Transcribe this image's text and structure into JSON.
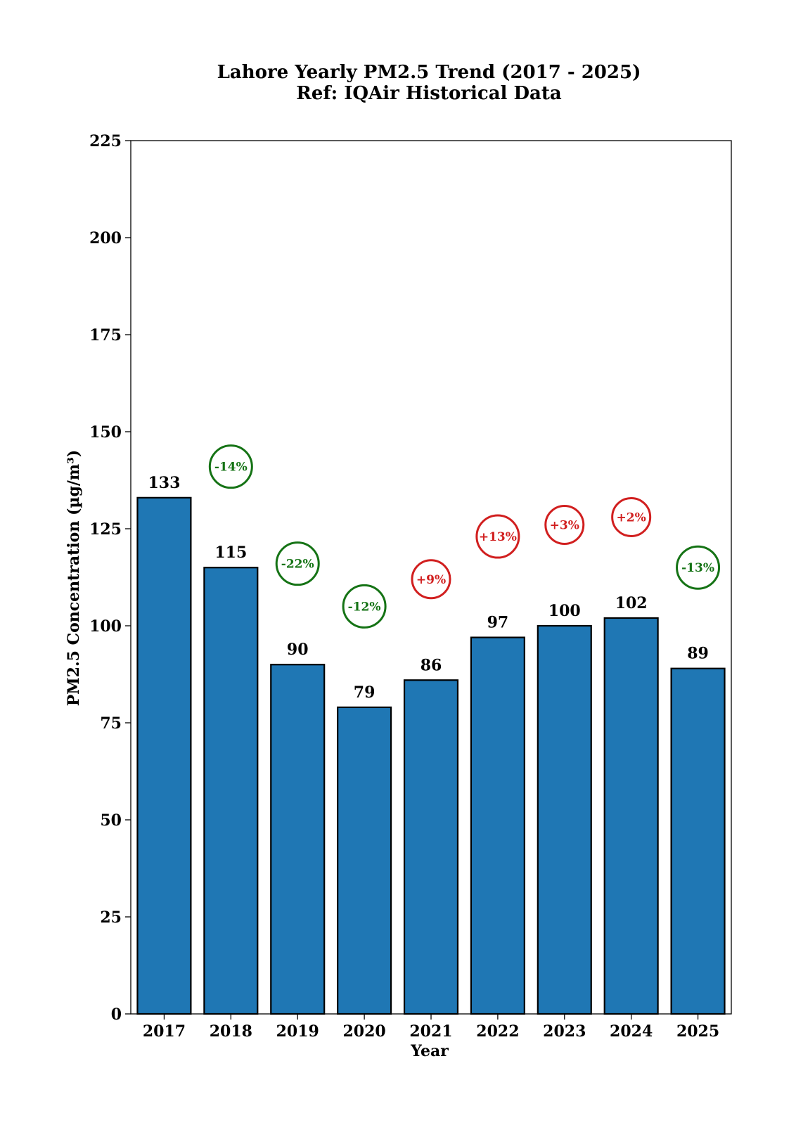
{
  "chart_data": {
    "type": "bar",
    "title": "Lahore Yearly PM2.5 Trend (2017 - 2025)",
    "subtitle": "Ref: IQAir Historical Data",
    "xlabel": "Year",
    "ylabel": "PM2.5 Concentration (µg/m³)",
    "categories": [
      "2017",
      "2018",
      "2019",
      "2020",
      "2021",
      "2022",
      "2023",
      "2024",
      "2025"
    ],
    "values": [
      133,
      115,
      90,
      79,
      86,
      97,
      100,
      102,
      89
    ],
    "ylim": [
      0,
      225
    ],
    "yticks": [
      0,
      25,
      50,
      75,
      100,
      125,
      150,
      175,
      200,
      225
    ],
    "grid": false,
    "bar_color": "#1f77b4",
    "bar_edge_color": "#000000",
    "changes": [
      {
        "year": "2018",
        "label": "-14%",
        "y": 141,
        "color": "#157315"
      },
      {
        "year": "2019",
        "label": "-22%",
        "y": 116,
        "color": "#157315"
      },
      {
        "year": "2020",
        "label": "-12%",
        "y": 105,
        "color": "#157315"
      },
      {
        "year": "2021",
        "label": "+9%",
        "y": 112,
        "color": "#d11f1f"
      },
      {
        "year": "2022",
        "label": "+13%",
        "y": 123,
        "color": "#d11f1f"
      },
      {
        "year": "2023",
        "label": "+3%",
        "y": 126,
        "color": "#d11f1f"
      },
      {
        "year": "2024",
        "label": "+2%",
        "y": 128,
        "color": "#d11f1f"
      },
      {
        "year": "2025",
        "label": "-13%",
        "y": 115,
        "color": "#157315"
      }
    ]
  }
}
